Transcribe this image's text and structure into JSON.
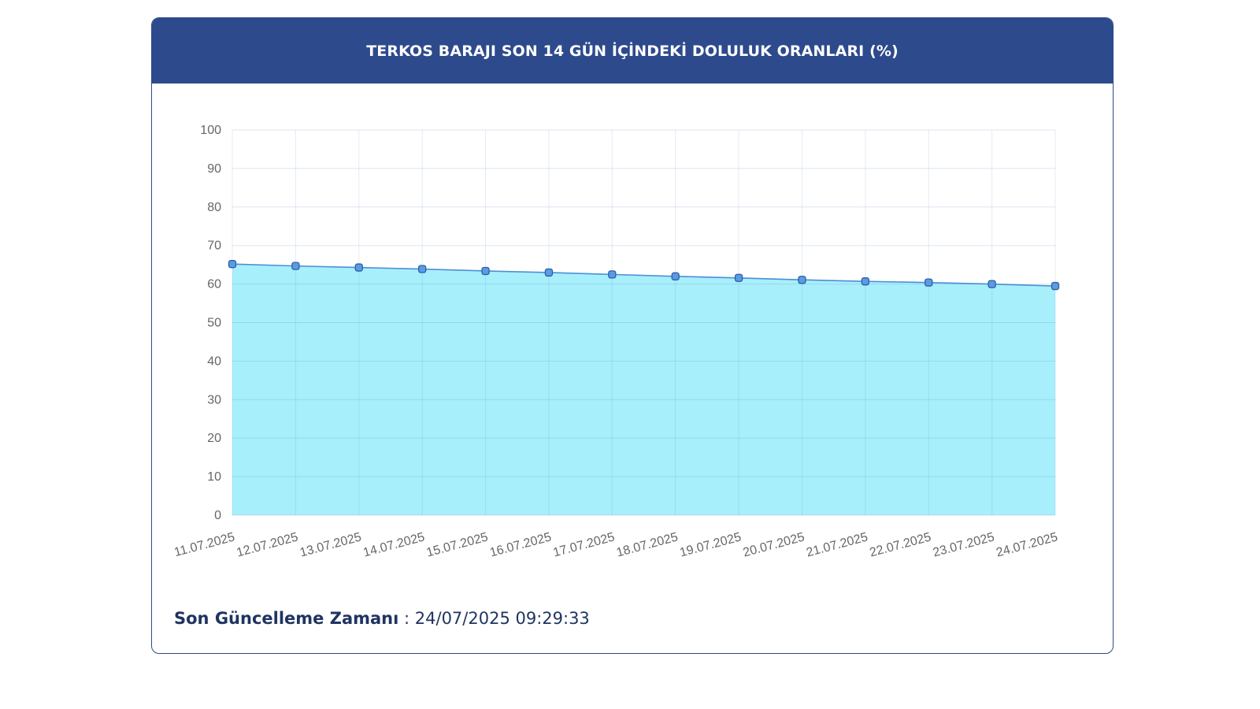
{
  "header": {
    "title": "TERKOS BARAJI SON 14 GÜN İÇİNDEKİ DOLULUK ORANLARI (%)"
  },
  "footer": {
    "label": "Son Güncelleme Zamanı",
    "separator": " : ",
    "value": "24/07/2025 09:29:33"
  },
  "colors": {
    "header_bg": "#2d4a8c",
    "area_fill": "#a8effc",
    "line": "#4a8fd6",
    "marker": "#5b9be0"
  },
  "chart_data": {
    "type": "area",
    "title": "TERKOS BARAJI SON 14 GÜN İÇİNDEKİ DOLULUK ORANLARI (%)",
    "xlabel": "",
    "ylabel": "",
    "ylim": [
      0,
      100
    ],
    "yticks": [
      0,
      10,
      20,
      30,
      40,
      50,
      60,
      70,
      80,
      90,
      100
    ],
    "grid": true,
    "categories": [
      "11.07.2025",
      "12.07.2025",
      "13.07.2025",
      "14.07.2025",
      "15.07.2025",
      "16.07.2025",
      "17.07.2025",
      "18.07.2025",
      "19.07.2025",
      "20.07.2025",
      "21.07.2025",
      "22.07.2025",
      "23.07.2025",
      "24.07.2025"
    ],
    "values": [
      65.2,
      64.7,
      64.3,
      63.9,
      63.4,
      63.0,
      62.5,
      62.0,
      61.6,
      61.1,
      60.7,
      60.4,
      60.0,
      59.5
    ]
  }
}
